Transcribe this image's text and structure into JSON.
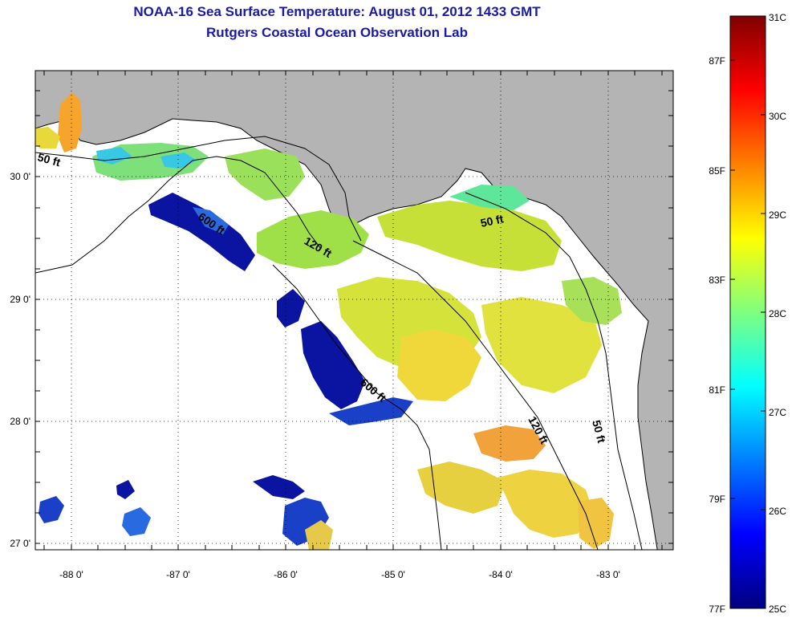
{
  "header": {
    "title_line1": "NOAA-16 Sea Surface Temperature:  August 01, 2012 1433 GMT",
    "title_line2": "Rutgers Coastal Ocean Observation Lab"
  },
  "map": {
    "lon_ticks": [
      "-88 0'",
      "-87 0'",
      "-86 0'",
      "-85 0'",
      "-84 0'",
      "-83 0'"
    ],
    "lat_ticks": [
      "30 0'",
      "29 0'",
      "28 0'",
      "27 0'"
    ],
    "contour_labels": [
      "50 ft",
      "600 ft",
      "120 ft",
      "50 ft",
      "600 ft",
      "120 ft",
      "50 ft"
    ],
    "colors": {
      "land": "#b4b4b4",
      "water": "#ffffff",
      "coast": "#000000"
    }
  },
  "colorbar": {
    "celsius_labels": [
      "31C",
      "30C",
      "29C",
      "28C",
      "27C",
      "26C",
      "25C"
    ],
    "fahrenheit_labels": [
      "87F",
      "85F",
      "83F",
      "81F",
      "79F",
      "77F"
    ],
    "gradient": [
      "#00007f",
      "#0000ff",
      "#007fff",
      "#00ffff",
      "#7fff7f",
      "#ffff00",
      "#ff7f00",
      "#ff0000",
      "#7f0000"
    ]
  }
}
